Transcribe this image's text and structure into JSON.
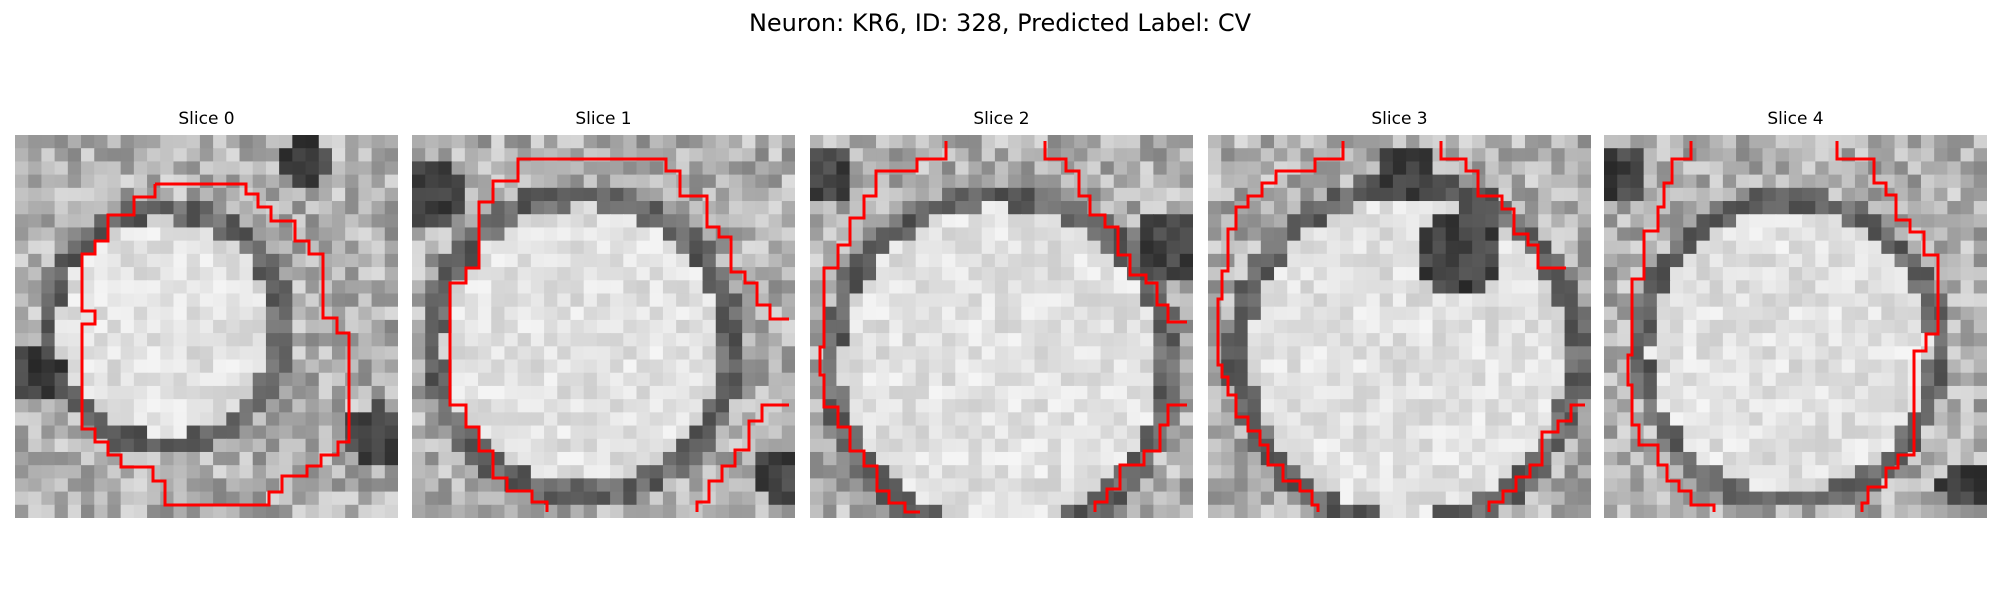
{
  "figure": {
    "title": "Neuron: KR6, ID: 328, Predicted Label: CV"
  },
  "panels": [
    {
      "title": "Slice 0"
    },
    {
      "title": "Slice 1"
    },
    {
      "title": "Slice 2"
    },
    {
      "title": "Slice 3"
    },
    {
      "title": "Slice 4"
    }
  ],
  "colors": {
    "contour": "#ff0000",
    "background": "#ffffff",
    "image_colormap": "gray"
  }
}
